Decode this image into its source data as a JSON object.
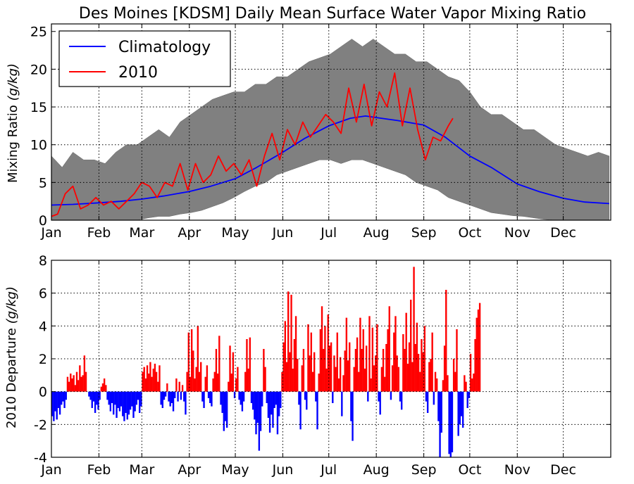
{
  "chart_data": [
    {
      "type": "area",
      "title": "Des Moines [KDSM] Daily Mean Surface Water Vapor Mixing Ratio",
      "ylabel": "Mixing Ratio (g/kg)",
      "ylabel_text": "Mixing Ratio ",
      "ylabel_unit": "(g/kg)",
      "xlabel": "",
      "xlim_day_of_year": [
        1,
        366
      ],
      "ylim": [
        0,
        26
      ],
      "yticks": [
        0,
        5,
        10,
        15,
        20,
        25
      ],
      "grid": true,
      "legend_position": "top-left",
      "month_ticks": [
        "Jan",
        "Feb",
        "Mar",
        "Apr",
        "May",
        "Jun",
        "Jul",
        "Aug",
        "Sep",
        "Oct",
        "Nov",
        "Dec"
      ],
      "month_start_days": [
        1,
        32,
        60,
        91,
        121,
        152,
        182,
        213,
        244,
        274,
        305,
        335
      ],
      "colors": {
        "climatology": "#0000ff",
        "y2010": "#ff0000",
        "range": "#808080"
      },
      "range_band": {
        "name": "",
        "x_day_of_year": [
          1,
          8,
          15,
          22,
          29,
          36,
          43,
          50,
          57,
          64,
          71,
          78,
          85,
          92,
          99,
          106,
          113,
          120,
          127,
          134,
          141,
          148,
          155,
          162,
          169,
          176,
          183,
          190,
          197,
          204,
          211,
          218,
          225,
          232,
          239,
          246,
          253,
          260,
          267,
          274,
          281,
          288,
          295,
          302,
          309,
          316,
          323,
          330,
          337,
          344,
          351,
          358,
          365
        ],
        "upper": [
          8.5,
          7,
          9,
          8,
          8,
          7.5,
          9,
          10,
          10,
          11,
          12,
          11,
          13,
          14,
          15,
          16,
          16.5,
          17,
          17,
          18,
          18,
          19,
          19,
          20,
          21,
          21.5,
          22,
          23,
          24,
          23,
          24,
          23,
          22,
          22,
          21,
          21,
          20,
          19,
          18.5,
          17,
          15,
          14,
          14,
          13,
          12,
          12,
          11,
          10,
          9.5,
          9,
          8.5,
          9,
          8.5
        ],
        "lower": [
          0,
          0,
          0,
          0,
          0,
          0,
          0,
          0,
          0,
          0.3,
          0.5,
          0.5,
          0.8,
          1,
          1.3,
          1.8,
          2.3,
          3,
          3.8,
          4.5,
          5,
          6,
          6.5,
          7,
          7.5,
          8,
          8,
          7.5,
          8,
          8,
          7.5,
          7,
          6.5,
          6,
          5,
          4.5,
          4,
          3,
          2.5,
          2,
          1.5,
          1,
          0.8,
          0.6,
          0.5,
          0.3,
          0.1,
          0,
          0,
          0,
          0,
          0,
          0
        ]
      },
      "series": [
        {
          "name": "Climatology",
          "x_day_of_year": [
            1,
            15,
            32,
            46,
            60,
            74,
            91,
            105,
            121,
            135,
            152,
            166,
            182,
            196,
            206,
            213,
            227,
            244,
            258,
            274,
            288,
            305,
            319,
            335,
            349,
            365
          ],
          "values": [
            2.0,
            2.1,
            2.3,
            2.5,
            2.8,
            3.2,
            3.8,
            4.5,
            5.5,
            7.0,
            9.0,
            10.8,
            12.5,
            13.5,
            13.8,
            13.6,
            13.2,
            12.6,
            11.0,
            8.5,
            7.0,
            4.8,
            3.8,
            2.9,
            2.4,
            2.2
          ]
        },
        {
          "name": "2010",
          "x_day_of_year": [
            1,
            5,
            10,
            15,
            20,
            25,
            30,
            35,
            40,
            45,
            50,
            55,
            60,
            65,
            70,
            75,
            80,
            85,
            90,
            95,
            100,
            105,
            110,
            115,
            120,
            125,
            130,
            135,
            140,
            145,
            150,
            155,
            160,
            165,
            170,
            175,
            180,
            185,
            190,
            195,
            200,
            205,
            210,
            215,
            220,
            225,
            230,
            235,
            240,
            245,
            250,
            255,
            260,
            263
          ],
          "values": [
            0.5,
            0.8,
            3.5,
            4.5,
            1.5,
            2.0,
            3.0,
            2.0,
            2.5,
            1.5,
            2.5,
            3.5,
            5.0,
            4.5,
            3.0,
            5.0,
            4.5,
            7.5,
            4.0,
            7.5,
            5.0,
            6.0,
            8.5,
            6.5,
            7.5,
            6.0,
            8.0,
            4.5,
            8.5,
            11.5,
            8.0,
            12.0,
            10.0,
            13.0,
            11.0,
            12.5,
            14.0,
            13.0,
            11.5,
            17.5,
            13.0,
            18.0,
            12.5,
            17.0,
            15.0,
            19.5,
            12.5,
            17.5,
            12.0,
            8.0,
            11.0,
            10.5,
            12.5,
            13.5
          ]
        }
      ]
    },
    {
      "type": "bar",
      "title": "",
      "ylabel": "2010 Departure (g/kg)",
      "ylabel_text": "2010 Departure ",
      "ylabel_unit": "(g/kg)",
      "xlabel": "",
      "xlim_day_of_year": [
        1,
        366
      ],
      "ylim": [
        -4,
        8
      ],
      "yticks": [
        -4,
        -2,
        0,
        2,
        4,
        6,
        8
      ],
      "grid": true,
      "month_ticks": [
        "Jan",
        "Feb",
        "Mar",
        "Apr",
        "May",
        "Jun",
        "Jul",
        "Aug",
        "Sep",
        "Oct",
        "Nov",
        "Dec"
      ],
      "month_start_days": [
        1,
        32,
        60,
        91,
        121,
        152,
        182,
        213,
        244,
        274,
        305,
        335
      ],
      "colors": {
        "positive": "#ff0000",
        "negative": "#0000ff"
      },
      "series": [
        {
          "name": "",
          "x_day_of_year_start": 1,
          "values": [
            -1.5,
            -1.8,
            -1.2,
            -1.7,
            -1.0,
            -1.4,
            -0.8,
            -0.6,
            -1.0,
            -0.5,
            0.9,
            0.6,
            1.1,
            0.8,
            1.0,
            0.4,
            1.2,
            0.7,
            1.6,
            0.9,
            1.0,
            2.2,
            1.2,
            0,
            -0.3,
            -0.5,
            -1.0,
            -0.6,
            -1.3,
            -0.8,
            -1.1,
            -0.5,
            0.3,
            0.5,
            0.8,
            0.4,
            -0.5,
            -0.8,
            -1.2,
            -0.7,
            -1.4,
            -0.8,
            -1.6,
            -1.0,
            -1.2,
            -0.9,
            -1.5,
            -1.8,
            -1.3,
            -1.7,
            -1.4,
            -1.1,
            -0.9,
            -1.6,
            -1.2,
            -0.8,
            -0.5,
            -1.3,
            -0.9,
            1.2,
            1.5,
            0.8,
            1.6,
            1.1,
            1.8,
            0.9,
            1.4,
            1.7,
            1.2,
            0.6,
            1.6,
            -0.8,
            -1.0,
            -0.5,
            -0.3,
            0.5,
            -0.6,
            -0.9,
            -0.7,
            -1.2,
            -0.4,
            0.8,
            -0.6,
            0.6,
            -0.5,
            0.4,
            -0.6,
            -1.4,
            1.2,
            3.6,
            0.9,
            3.8,
            2.5,
            0.8,
            1.5,
            4.0,
            1.2,
            1.8,
            -0.6,
            -1.0,
            0.9,
            1.6,
            -0.4,
            -0.7,
            -0.9,
            0.8,
            1.2,
            2.6,
            1.1,
            3.4,
            -0.8,
            -1.3,
            -2.4,
            -1.8,
            -2.2,
            0.6,
            2.8,
            1.1,
            2.4,
            -0.4,
            0.8,
            1.5,
            -0.5,
            -0.8,
            -1.2,
            -0.6,
            1.2,
            3.2,
            1.4,
            3.3,
            -0.7,
            -1.1,
            -1.7,
            -2.6,
            -1.9,
            -3.6,
            -2.4,
            -0.9,
            2.6,
            1.5,
            -0.7,
            -1.6,
            -2.5,
            -1.4,
            -2.2,
            -1.0,
            -0.8,
            -2.6,
            -1.5,
            -1.0,
            1.2,
            3.0,
            4.3,
            1.8,
            6.1,
            2.4,
            5.9,
            1.4,
            3.2,
            4.6,
            2.0,
            -0.8,
            -2.3,
            1.6,
            2.6,
            -0.5,
            -1.1,
            4.1,
            2.2,
            3.6,
            1.2,
            2.4,
            -0.6,
            -2.3,
            1.1,
            3.8,
            5.2,
            2.6,
            4.0,
            1.4,
            4.7,
            2.8,
            3.0,
            -0.7,
            2.2,
            1.5,
            3.6,
            0.8,
            2.1,
            -1.5,
            1.0,
            2.5,
            4.5,
            1.9,
            3.0,
            -1.8,
            -3.0,
            1.5,
            2.6,
            3.3,
            1.2,
            4.5,
            2.6,
            3.8,
            1.4,
            2.8,
            -0.6,
            4.6,
            0.8,
            3.9,
            1.6,
            2.2,
            4.1,
            -0.6,
            -1.4,
            1.5,
            2.6,
            0.9,
            2.9,
            3.8,
            5.2,
            -0.5,
            1.6,
            3.6,
            4.6,
            2.2,
            1.5,
            -0.6,
            -1.1,
            3.5,
            2.6,
            4.8,
            1.7,
            3.0,
            5.6,
            1.8,
            7.6,
            2.9,
            4.2,
            2.3,
            1.2,
            3.2,
            2.4,
            4.0,
            -0.6,
            -1.3,
            1.8,
            2.0,
            3.6,
            -0.8,
            1.2,
            0.8,
            -1.8,
            -4.0,
            -2.5,
            0.7,
            2.8,
            6.2,
            1.0,
            -3.8,
            -4.0,
            -3.7,
            2.0,
            1.2,
            3.8,
            -2.7,
            -2.0,
            -1.5,
            -2.2,
            1.0,
            0.6,
            -1.0,
            -0.4,
            2.3,
            0.8,
            1.1,
            3.2,
            4.5,
            5.0,
            5.4
          ]
        }
      ]
    }
  ]
}
